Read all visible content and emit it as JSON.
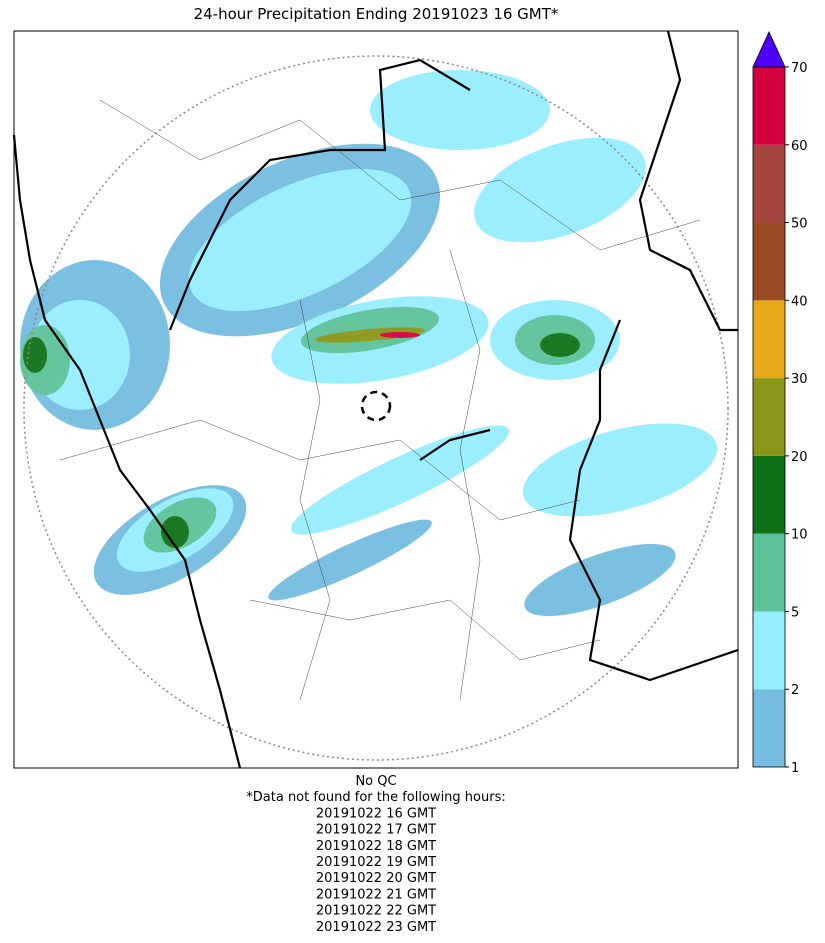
{
  "title": "24-hour Precipitation Ending 20191023 16 GMT*",
  "colorbar": {
    "ticks": [
      1,
      2,
      5,
      10,
      20,
      30,
      40,
      50,
      60,
      70
    ],
    "colors": [
      "#74bde0",
      "#96eeff",
      "#5dc29a",
      "#0f7219",
      "#8b9618",
      "#e6a919",
      "#9a4b26",
      "#a5473f",
      "#d5003e"
    ],
    "extend_color": "#5000ff"
  },
  "notes": [
    "No QC",
    "*Data not found for the following hours:",
    "20191022 16 GMT",
    "20191022 17 GMT",
    "20191022 18 GMT",
    "20191022 19 GMT",
    "20191022 20 GMT",
    "20191022 21 GMT",
    "20191022 22 GMT",
    "20191022 23 GMT"
  ]
}
